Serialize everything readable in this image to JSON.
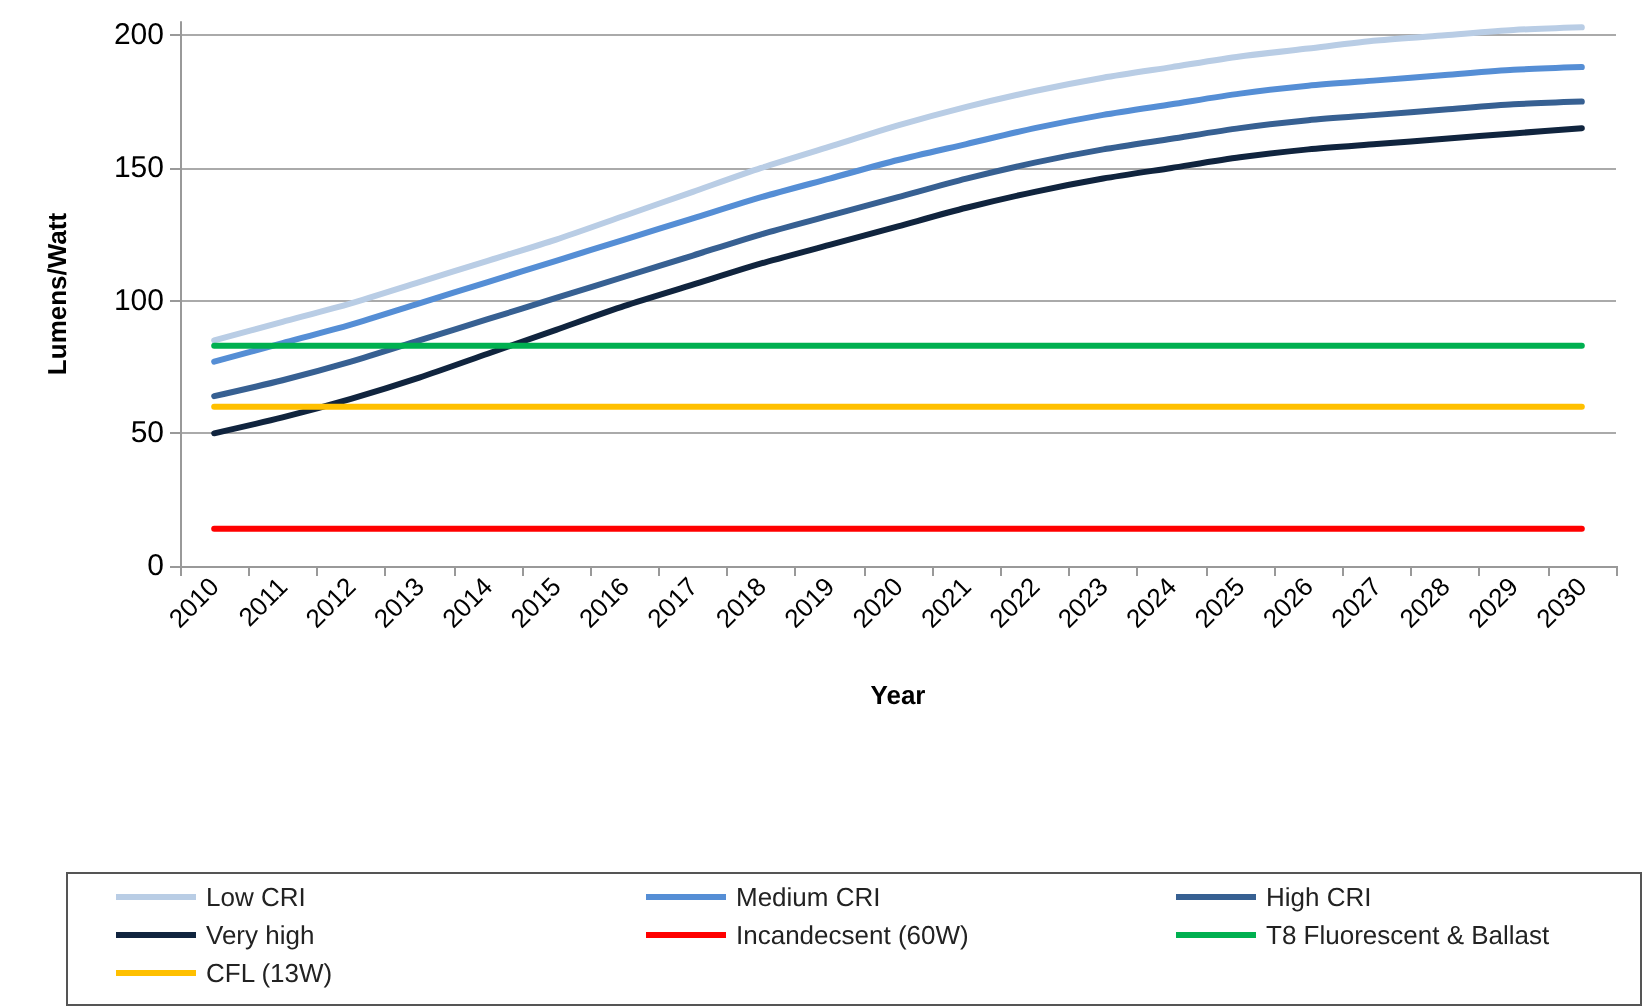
{
  "chart_data": {
    "type": "line",
    "xlabel": "Year",
    "ylabel": "Lumens/Watt",
    "categories": [
      "2010",
      "2011",
      "2012",
      "2013",
      "2014",
      "2015",
      "2016",
      "2017",
      "2018",
      "2019",
      "2020",
      "2021",
      "2022",
      "2023",
      "2024",
      "2025",
      "2026",
      "2027",
      "2028",
      "2029",
      "2030"
    ],
    "ylim": [
      0,
      205
    ],
    "yticks": [
      0,
      50,
      100,
      150,
      200
    ],
    "grid": "y",
    "legend": "bottom",
    "marker": "none",
    "line_style": "solid",
    "series": [
      {
        "name": "Low CRI",
        "color": "#b9cde5",
        "values": [
          85,
          92,
          99,
          107,
          115,
          123,
          132,
          141,
          150,
          158,
          166,
          173,
          179,
          184,
          188,
          192,
          195,
          198,
          200,
          202,
          203
        ]
      },
      {
        "name": "Medium CRI",
        "color": "#558ed5",
        "values": [
          77,
          84,
          91,
          99,
          107,
          115,
          123,
          131,
          139,
          146,
          153,
          159,
          165,
          170,
          174,
          178,
          181,
          183,
          185,
          187,
          188
        ]
      },
      {
        "name": "High CRI",
        "color": "#376092",
        "values": [
          64,
          70,
          77,
          85,
          93,
          101,
          109,
          117,
          125,
          132,
          139,
          146,
          152,
          157,
          161,
          165,
          168,
          170,
          172,
          174,
          175
        ]
      },
      {
        "name": "Very high",
        "color": "#10243e",
        "values": [
          50,
          56,
          63,
          71,
          80,
          89,
          98,
          106,
          114,
          121,
          128,
          135,
          141,
          146,
          150,
          154,
          157,
          159,
          161,
          163,
          165
        ]
      },
      {
        "name": "Incandecsent (60W)",
        "color": "#ff0000",
        "values": [
          14,
          14,
          14,
          14,
          14,
          14,
          14,
          14,
          14,
          14,
          14,
          14,
          14,
          14,
          14,
          14,
          14,
          14,
          14,
          14,
          14
        ]
      },
      {
        "name": "T8 Fluorescent & Ballast",
        "color": "#00b050",
        "values": [
          83,
          83,
          83,
          83,
          83,
          83,
          83,
          83,
          83,
          83,
          83,
          83,
          83,
          83,
          83,
          83,
          83,
          83,
          83,
          83,
          83
        ]
      },
      {
        "name": "CFL (13W)",
        "color": "#ffc000",
        "values": [
          60,
          60,
          60,
          60,
          60,
          60,
          60,
          60,
          60,
          60,
          60,
          60,
          60,
          60,
          60,
          60,
          60,
          60,
          60,
          60,
          60
        ]
      }
    ]
  }
}
